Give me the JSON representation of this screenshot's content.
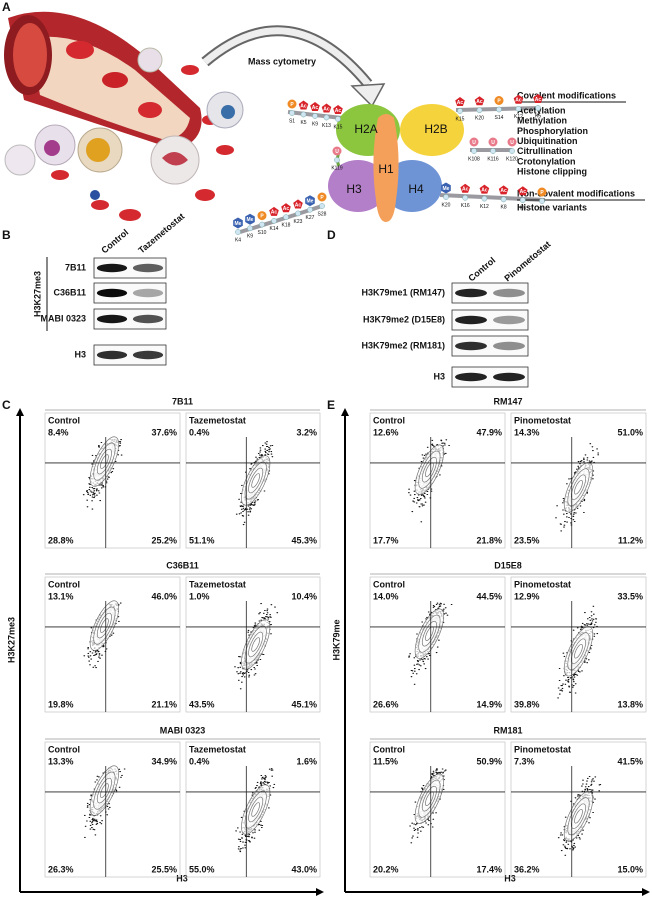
{
  "panel_a": {
    "letter": "A",
    "arrow_label": "Mass cytometry",
    "histones": {
      "h2a": "H2A",
      "h2b": "H2B",
      "h1": "H1",
      "h3": "H3",
      "h4": "H4"
    },
    "mod_icons": {
      "phospho": "P",
      "acetyl": "Ac",
      "methyl": "Me",
      "ubiquitin": "U"
    },
    "residues": {
      "h2a_n": [
        "S1",
        "K5",
        "K9",
        "K13",
        "K15"
      ],
      "h2a_c": [
        "K119"
      ],
      "h2b_n": [
        "K15",
        "K20",
        "S14",
        "K12",
        "K5"
      ],
      "h2b_c": [
        "K108",
        "K116",
        "K120"
      ],
      "h4_n": [
        "K20",
        "K16",
        "K12",
        "K8",
        "K5",
        "S1"
      ],
      "h3_n": [
        "K4",
        "K9",
        "S10",
        "K14",
        "K18",
        "K23",
        "K27",
        "S28"
      ]
    },
    "covalent": {
      "heading": "Covalent modifications",
      "items": [
        "Acetylation",
        "Methylation",
        "Phosphorylation",
        "Ubiquitination",
        "Citrullination",
        "Crotonylation",
        "Histone clipping"
      ]
    },
    "non_covalent": {
      "heading": "Non-covalent modifications",
      "items": [
        "Histone variants"
      ]
    }
  },
  "panel_b": {
    "letter": "B",
    "columns": [
      "Control",
      "Tazemetostat"
    ],
    "group_label": "H3K27me3",
    "rows": [
      "7B11",
      "C36B11",
      "MABI 0323",
      "H3"
    ]
  },
  "panel_d": {
    "letter": "D",
    "columns": [
      "Control",
      "Pinometostat"
    ],
    "rows": [
      "H3K79me1 (RM147)",
      "H3K79me2 (D15E8)",
      "H3K79me2 (RM181)",
      "H3"
    ]
  },
  "panel_c": {
    "letter": "C",
    "y_label": "H3K27me3",
    "x_label": "H3",
    "groups": [
      {
        "title": "7B11",
        "plots": [
          {
            "name": "Control",
            "quadrants": {
              "upper_left": "8.4%",
              "upper_right": "37.6%",
              "lower_left": "28.8%",
              "lower_right": "25.2%"
            }
          },
          {
            "name": "Tazemetostat",
            "quadrants": {
              "upper_left": "0.4%",
              "upper_right": "3.2%",
              "lower_left": "51.1%",
              "lower_right": "45.3%"
            }
          }
        ]
      },
      {
        "title": "C36B11",
        "plots": [
          {
            "name": "Control",
            "quadrants": {
              "upper_left": "13.1%",
              "upper_right": "46.0%",
              "lower_left": "19.8%",
              "lower_right": "21.1%"
            }
          },
          {
            "name": "Tazemetostat",
            "quadrants": {
              "upper_left": "1.0%",
              "upper_right": "10.4%",
              "lower_left": "43.5%",
              "lower_right": "45.1%"
            }
          }
        ]
      },
      {
        "title": "MABI 0323",
        "plots": [
          {
            "name": "Control",
            "quadrants": {
              "upper_left": "13.3%",
              "upper_right": "34.9%",
              "lower_left": "26.3%",
              "lower_right": "25.5%"
            }
          },
          {
            "name": "Tazemetostat",
            "quadrants": {
              "upper_left": "0.4%",
              "upper_right": "1.6%",
              "lower_left": "55.0%",
              "lower_right": "43.0%"
            }
          }
        ]
      }
    ]
  },
  "panel_e": {
    "letter": "E",
    "y_label": "H3K79me",
    "x_label": "H3",
    "groups": [
      {
        "title": "RM147",
        "plots": [
          {
            "name": "Control",
            "quadrants": {
              "upper_left": "12.6%",
              "upper_right": "47.9%",
              "lower_left": "17.7%",
              "lower_right": "21.8%"
            }
          },
          {
            "name": "Pinometostat",
            "quadrants": {
              "upper_left": "14.3%",
              "upper_right": "51.0%",
              "lower_left": "23.5%",
              "lower_right": "11.2%"
            }
          }
        ]
      },
      {
        "title": "D15E8",
        "plots": [
          {
            "name": "Control",
            "quadrants": {
              "upper_left": "14.0%",
              "upper_right": "44.5%",
              "lower_left": "26.6%",
              "lower_right": "14.9%"
            }
          },
          {
            "name": "Pinometostat",
            "quadrants": {
              "upper_left": "12.9%",
              "upper_right": "33.5%",
              "lower_left": "39.8%",
              "lower_right": "13.8%"
            }
          }
        ]
      },
      {
        "title": "RM181",
        "plots": [
          {
            "name": "Control",
            "quadrants": {
              "upper_left": "11.5%",
              "upper_right": "50.9%",
              "lower_left": "20.2%",
              "lower_right": "17.4%"
            }
          },
          {
            "name": "Pinometostat",
            "quadrants": {
              "upper_left": "7.3%",
              "upper_right": "41.5%",
              "lower_left": "36.2%",
              "lower_right": "15.0%"
            }
          }
        ]
      }
    ]
  }
}
